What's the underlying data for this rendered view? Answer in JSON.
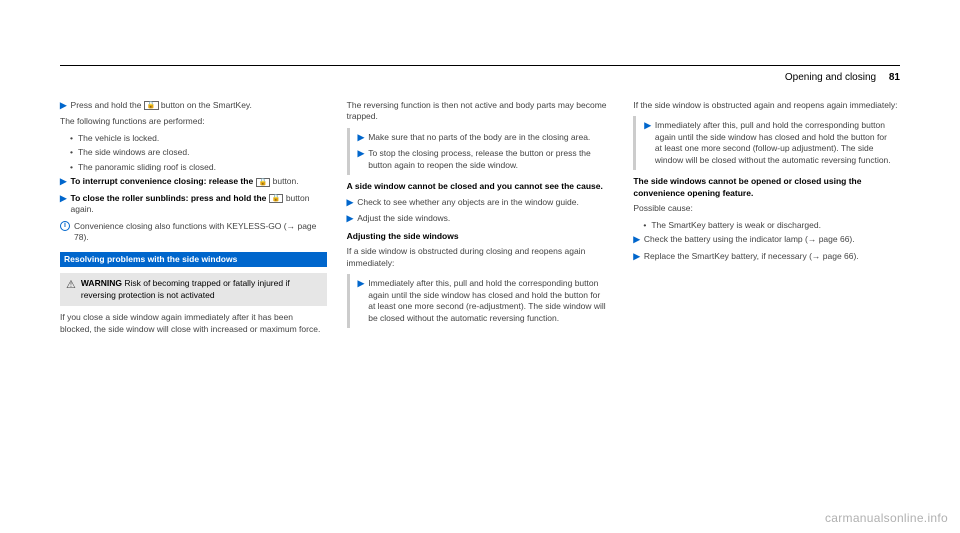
{
  "header": {
    "section": "Opening and closing",
    "pagenum": "81"
  },
  "col1": {
    "step1a": "Press and hold the ",
    "step1b": " button on the SmartKey.",
    "para1": "The following functions are performed:",
    "b1": "The vehicle is locked.",
    "b2": "The side windows are closed.",
    "b3": "The panoramic sliding roof is closed.",
    "step2a": "To interrupt convenience closing: release the ",
    "step2b": " button.",
    "step3a": "To close the roller sunblinds: press and hold the ",
    "step3b": " button again.",
    "info": "Convenience closing also functions with KEYLESS-GO (→ page 78).",
    "subheading": "Resolving problems with the side windows",
    "warn_title": "WARNING",
    "warn_text": " Risk of becoming trapped or fatally injured if reversing protection is not activated",
    "para2": "If you close a side window again immediately after it has been blocked, the side window will close with increased or maximum force."
  },
  "col2": {
    "para1": "The reversing function is then not active and body parts may become trapped.",
    "gstep1": "Make sure that no parts of the body are in the closing area.",
    "gstep2": "To stop the closing process, release the button or press the button again to reopen the side window.",
    "bold1": "A side window cannot be closed and you cannot see the cause.",
    "step1": "Check to see whether any objects are in the window guide.",
    "step2": "Adjust the side windows.",
    "bold2": "Adjusting the side windows",
    "para2": "If a side window is obstructed during closing and reopens again immediately:",
    "gstep3": "Immediately after this, pull and hold the corresponding button again until the side window has closed and hold the button for at least one more second (re-adjustment). The side window will be closed without the automatic reversing function."
  },
  "col3": {
    "para1": "If the side window is obstructed again and reopens again immediately:",
    "gstep1": "Immediately after this, pull and hold the corresponding button again until the side window has closed and hold the button for at least one more second (follow-up adjustment). The side window will be closed without the automatic reversing function.",
    "bold1": "The side windows cannot be opened or closed using the convenience opening feature.",
    "para2": "Possible cause:",
    "b1": "The SmartKey battery is weak or discharged.",
    "step1": "Check the battery using the indicator lamp (→ page 66).",
    "step2": "Replace the SmartKey battery, if necessary (→ page 66)."
  },
  "watermark": "carmanualsonline.info",
  "lock_glyph": "🔒"
}
